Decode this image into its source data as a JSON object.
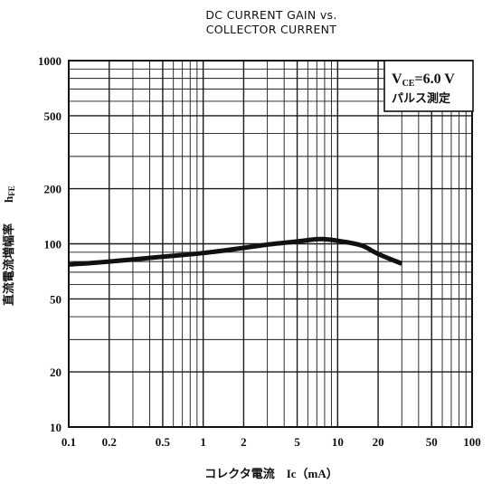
{
  "chart_data": {
    "type": "line",
    "title_line1": "DC CURRENT GAIN vs.",
    "title_line2": "COLLECTOR CURRENT",
    "xlabel": "コレクタ電流　Ic（mA）",
    "ylabel_jp": "直流電流増幅率",
    "ylabel_sym": "hFE",
    "x_scale": "log",
    "y_scale": "log",
    "xlim": [
      0.1,
      100
    ],
    "ylim": [
      10,
      1000
    ],
    "x_ticks": [
      {
        "value": 0.1,
        "label": "0.1"
      },
      {
        "value": 0.2,
        "label": "0.2"
      },
      {
        "value": 0.5,
        "label": "0.5"
      },
      {
        "value": 1,
        "label": "1"
      },
      {
        "value": 2,
        "label": "2"
      },
      {
        "value": 5,
        "label": "5"
      },
      {
        "value": 10,
        "label": "10"
      },
      {
        "value": 20,
        "label": "20"
      },
      {
        "value": 50,
        "label": "50"
      },
      {
        "value": 100,
        "label": "100"
      }
    ],
    "y_ticks": [
      {
        "value": 10,
        "label": "10"
      },
      {
        "value": 20,
        "label": "20"
      },
      {
        "value": 50,
        "label": "50"
      },
      {
        "value": 100,
        "label": "100"
      },
      {
        "value": 200,
        "label": "200"
      },
      {
        "value": 500,
        "label": "500"
      },
      {
        "value": 1000,
        "label": "1000"
      }
    ],
    "grid": true,
    "annotation_line1": "VCE=6.0 V",
    "annotation_line2": "パルス測定",
    "legend_position": "top-right",
    "series": [
      {
        "x": [
          0.1,
          0.2,
          0.5,
          1,
          2,
          3,
          5,
          7,
          8,
          10,
          15,
          20,
          30
        ],
        "y": [
          77,
          80,
          85,
          89,
          95,
          99,
          103,
          106,
          106,
          104,
          98,
          88,
          78
        ]
      }
    ],
    "colors": {
      "line": "#111111",
      "grid": "#1a1a1a",
      "background": "#ffffff"
    }
  }
}
